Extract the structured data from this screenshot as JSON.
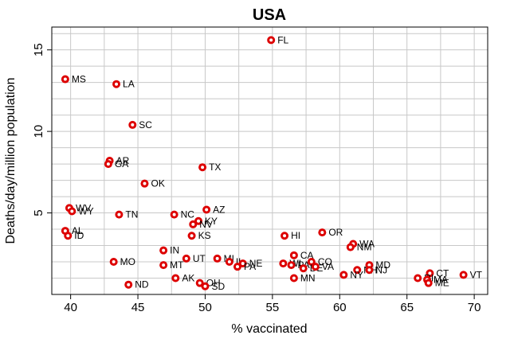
{
  "chart_data": {
    "type": "scatter",
    "title": "USA",
    "xlabel": "% vaccinated",
    "ylabel": "Deaths/day/million population",
    "xlim": [
      38.6,
      71
    ],
    "ylim": [
      0,
      16.4
    ],
    "xticks": [
      40,
      45,
      50,
      55,
      60,
      65,
      70
    ],
    "yticks": [
      5,
      10,
      15
    ],
    "grid": true,
    "marker_color": "#dd0000",
    "points": [
      {
        "label": "FL",
        "x": 54.9,
        "y": 15.6
      },
      {
        "label": "MS",
        "x": 39.6,
        "y": 13.2
      },
      {
        "label": "LA",
        "x": 43.4,
        "y": 12.9
      },
      {
        "label": "SC",
        "x": 44.6,
        "y": 10.4
      },
      {
        "label": "AR",
        "x": 42.9,
        "y": 8.2
      },
      {
        "label": "GA",
        "x": 42.8,
        "y": 8.0
      },
      {
        "label": "TX",
        "x": 49.8,
        "y": 7.8
      },
      {
        "label": "OK",
        "x": 45.5,
        "y": 6.8
      },
      {
        "label": "WV",
        "x": 39.9,
        "y": 5.3
      },
      {
        "label": "WY",
        "x": 40.1,
        "y": 5.1
      },
      {
        "label": "TN",
        "x": 43.6,
        "y": 4.9
      },
      {
        "label": "AZ",
        "x": 50.1,
        "y": 5.2
      },
      {
        "label": "NC",
        "x": 47.7,
        "y": 4.9
      },
      {
        "label": "KY",
        "x": 49.5,
        "y": 4.5
      },
      {
        "label": "NV",
        "x": 49.1,
        "y": 4.3
      },
      {
        "label": "AL",
        "x": 39.6,
        "y": 3.9
      },
      {
        "label": "ID",
        "x": 39.8,
        "y": 3.6
      },
      {
        "label": "KS",
        "x": 49.0,
        "y": 3.6
      },
      {
        "label": "HI",
        "x": 55.9,
        "y": 3.6
      },
      {
        "label": "OR",
        "x": 58.7,
        "y": 3.8
      },
      {
        "label": "WA",
        "x": 61.0,
        "y": 3.1
      },
      {
        "label": "NM",
        "x": 60.8,
        "y": 2.9
      },
      {
        "label": "IN",
        "x": 46.9,
        "y": 2.7
      },
      {
        "label": "CA",
        "x": 56.6,
        "y": 2.4
      },
      {
        "label": "UT",
        "x": 48.6,
        "y": 2.2
      },
      {
        "label": "MI",
        "x": 50.9,
        "y": 2.2
      },
      {
        "label": "IL",
        "x": 51.8,
        "y": 2.0
      },
      {
        "label": "NE",
        "x": 52.8,
        "y": 1.9
      },
      {
        "label": "PA",
        "x": 52.4,
        "y": 1.7
      },
      {
        "label": "MO",
        "x": 43.2,
        "y": 2.0
      },
      {
        "label": "MT",
        "x": 46.9,
        "y": 1.8
      },
      {
        "label": "WI",
        "x": 55.8,
        "y": 1.9
      },
      {
        "label": "PA",
        "x": 56.4,
        "y": 1.8
      },
      {
        "label": "CO",
        "x": 57.9,
        "y": 2.0
      },
      {
        "label": "DE",
        "x": 57.3,
        "y": 1.6
      },
      {
        "label": "VA",
        "x": 58.2,
        "y": 1.7
      },
      {
        "label": "MD",
        "x": 62.2,
        "y": 1.8
      },
      {
        "label": "NH",
        "x": 61.3,
        "y": 1.5
      },
      {
        "label": "NJ",
        "x": 62.2,
        "y": 1.5
      },
      {
        "label": "NY",
        "x": 60.3,
        "y": 1.2
      },
      {
        "label": "MN",
        "x": 56.6,
        "y": 1.0
      },
      {
        "label": "AK",
        "x": 47.8,
        "y": 1.0
      },
      {
        "label": "OH",
        "x": 49.6,
        "y": 0.7
      },
      {
        "label": "SD",
        "x": 50.0,
        "y": 0.5
      },
      {
        "label": "ND",
        "x": 44.3,
        "y": 0.6
      },
      {
        "label": "CT",
        "x": 66.7,
        "y": 1.3
      },
      {
        "label": "VT",
        "x": 69.2,
        "y": 1.2
      },
      {
        "label": "RI",
        "x": 65.8,
        "y": 1.0
      },
      {
        "label": "MA",
        "x": 66.5,
        "y": 0.9
      },
      {
        "label": "ME",
        "x": 66.6,
        "y": 0.7
      }
    ]
  }
}
